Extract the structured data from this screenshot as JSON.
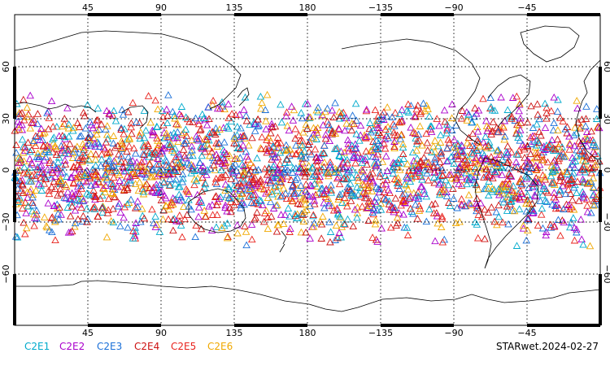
{
  "map": {
    "projection": "equirectangular, Pacific-centred",
    "lon_range": [
      0,
      360
    ],
    "lat_range": [
      -90,
      90
    ],
    "grid": "dotted",
    "lon_ticks": [
      "45",
      "90",
      "135",
      "180",
      "−135",
      "−90",
      "−45"
    ],
    "lat_ticks": [
      "60",
      "30",
      "0",
      "−30",
      "−60"
    ],
    "marker": "open triangle",
    "observation_band_lat": [
      -45,
      45
    ]
  },
  "legend": [
    {
      "label": "C2E1",
      "color": "#00aacc"
    },
    {
      "label": "C2E2",
      "color": "#aa00cc"
    },
    {
      "label": "C2E3",
      "color": "#1a6fd8"
    },
    {
      "label": "C2E4",
      "color": "#cc1111"
    },
    {
      "label": "C2E5",
      "color": "#e8231d"
    },
    {
      "label": "C2E6",
      "color": "#f0a800"
    }
  ],
  "product_label": "STARwet.2024-02-27"
}
